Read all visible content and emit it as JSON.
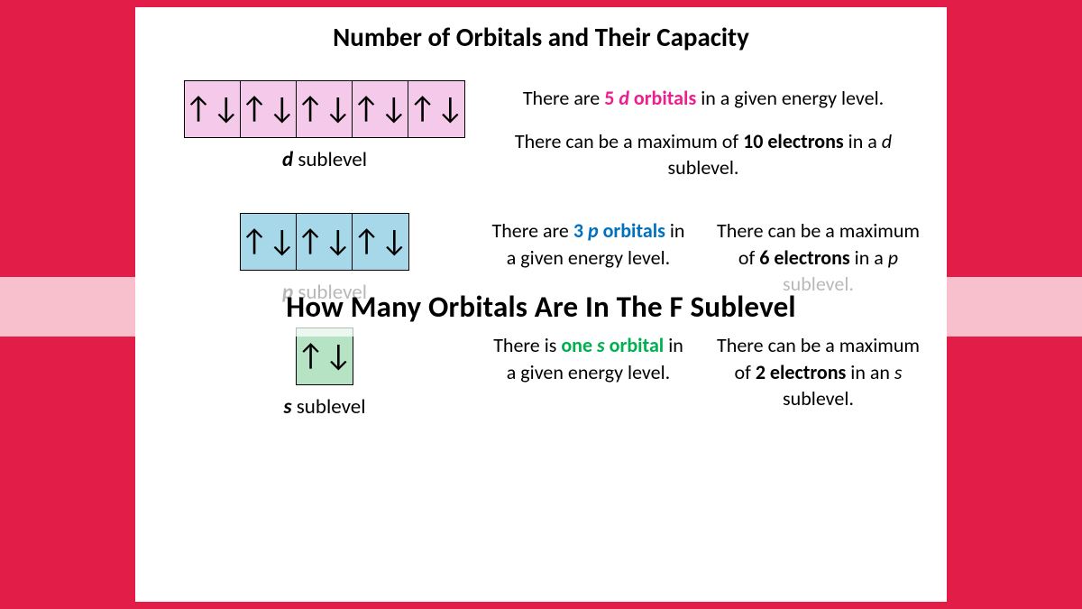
{
  "background_color": "#e11d48",
  "slide": {
    "background_color": "#ffffff",
    "title": "Number of Orbitals and Their Capacity",
    "title_fontsize": 29
  },
  "arrows": "↑↓",
  "sublevels": {
    "d": {
      "label_letter": "d",
      "label_word": " sublevel",
      "box_count": 5,
      "box_fill": "#f5c9e9",
      "text1_a": "There are ",
      "text1_hl": "5 ",
      "text1_hl2_ital": "d",
      "text1_hl3": " orbitals",
      "text1_b": " in a given energy level.",
      "text2_a": "There can be a maximum of ",
      "text2_bold": "10 electrons",
      "text2_b": " in a ",
      "text2_ital": "d",
      "text2_c": " sublevel.",
      "highlight_color": "#ec1f8e"
    },
    "p": {
      "label_letter": "p",
      "label_word": " sublevel",
      "box_count": 3,
      "box_fill": "#a7d8ea",
      "text1_a": "There are ",
      "text1_hl": "3 ",
      "text1_hl2_ital": "p",
      "text1_hl3": " orbitals",
      "text1_b": " in a given energy level.",
      "text2_a": "There can be a maximum of ",
      "text2_bold": "6 electrons",
      "text2_b": " in a ",
      "text2_ital": "p",
      "text2_c": " sublevel.",
      "highlight_color": "#0070c0"
    },
    "s": {
      "label_letter": "s",
      "label_word": " sublevel",
      "box_count": 1,
      "box_fill": "#b6e3c4",
      "text1_a": "There is ",
      "text1_hl": "one ",
      "text1_hl2_ital": "s",
      "text1_hl3": " orbital",
      "text1_b": " in a given energy level.",
      "text2_a": "There can be a maximum of ",
      "text2_bold": "2 electrons",
      "text2_b": " in an ",
      "text2_ital": "s",
      "text2_c": " sublevel.",
      "highlight_color": "#00b050"
    }
  },
  "overlay": {
    "text": "How Many Orbitals Are In The F Sublevel",
    "band_color": "rgba(255,255,255,0.72)",
    "fontsize": 33
  }
}
